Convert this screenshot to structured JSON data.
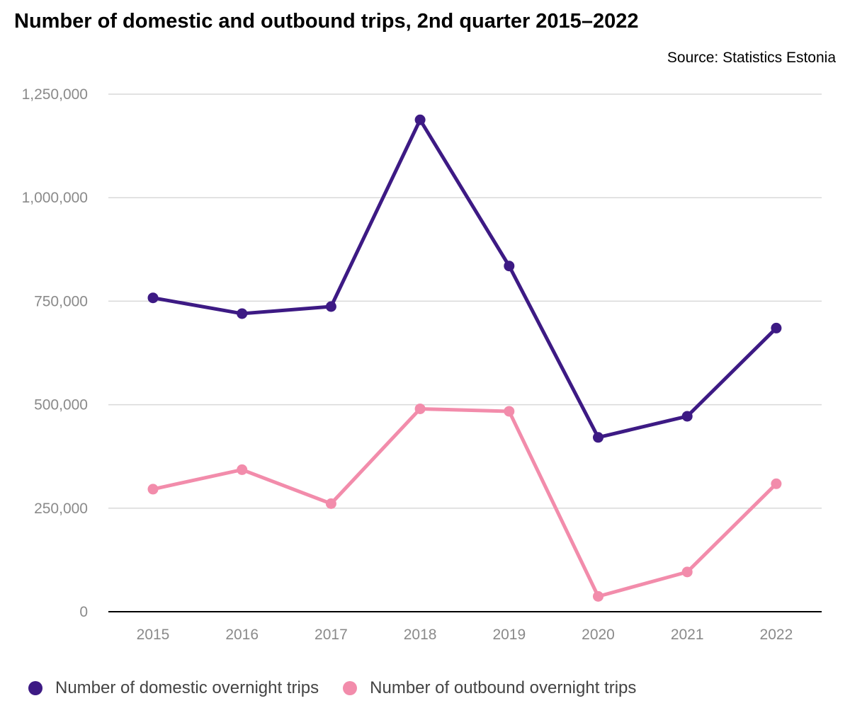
{
  "title": "Number of domestic and outbound trips, 2nd quarter 2015–2022",
  "source": "Source: Statistics Estonia",
  "chart_data": {
    "type": "line",
    "x": [
      "2015",
      "2016",
      "2017",
      "2018",
      "2019",
      "2020",
      "2021",
      "2022"
    ],
    "series": [
      {
        "name": "Number of domestic overnight trips",
        "color": "#3d1a84",
        "values": [
          758000,
          720000,
          737000,
          1188000,
          835000,
          421000,
          472000,
          685000
        ]
      },
      {
        "name": "Number of outbound overnight trips",
        "color": "#f28cab",
        "values": [
          296000,
          343000,
          261000,
          490000,
          484000,
          37000,
          96000,
          309000
        ]
      }
    ],
    "ylim": [
      0,
      1250000
    ],
    "yticks": [
      0,
      250000,
      500000,
      750000,
      1000000,
      1250000
    ],
    "ytick_labels": [
      "0",
      "250,000",
      "500,000",
      "750,000",
      "1,000,000",
      "1,250,000"
    ],
    "grid": true,
    "legend_position": "bottom-left"
  }
}
